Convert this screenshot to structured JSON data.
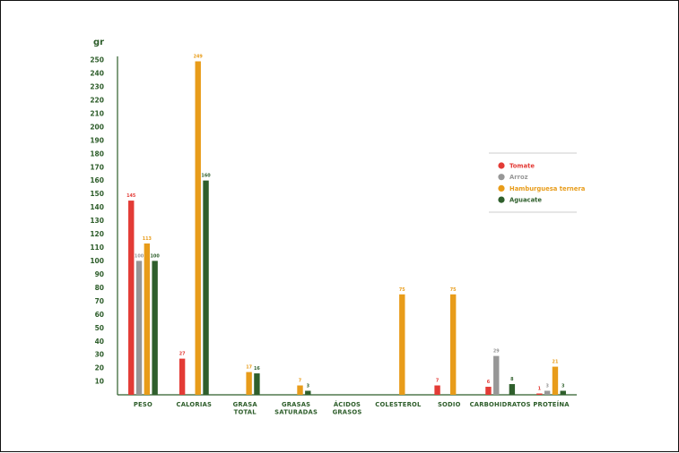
{
  "chart_data": {
    "type": "bar",
    "unit_label": "gr",
    "yticks": [
      10,
      20,
      30,
      40,
      50,
      60,
      70,
      80,
      90,
      100,
      110,
      120,
      130,
      140,
      150,
      160,
      170,
      180,
      190,
      200,
      210,
      220,
      230,
      240,
      250
    ],
    "ylim": [
      0,
      250
    ],
    "categories": [
      [
        "PESO"
      ],
      [
        "CALORIAS"
      ],
      [
        "GRASA",
        "TOTAL"
      ],
      [
        "GRASAS",
        "SATURADAS"
      ],
      [
        "ÁCIDOS",
        "GRASOS"
      ],
      [
        "COLESTEROL"
      ],
      [
        "SODIO"
      ],
      [
        "CARBOHIDRATOS"
      ],
      [
        "PROTEÍNA"
      ]
    ],
    "series": [
      {
        "name": "Tomate",
        "color": "#e33b36",
        "values": [
          145,
          27,
          null,
          null,
          null,
          null,
          7,
          6,
          1
        ]
      },
      {
        "name": "Arroz",
        "color": "#979797",
        "values": [
          100,
          null,
          null,
          null,
          null,
          null,
          null,
          29,
          3
        ]
      },
      {
        "name": "Hamburguesa ternera",
        "color": "#e89c1a",
        "values": [
          113,
          249,
          17,
          7,
          null,
          75,
          75,
          null,
          21
        ]
      },
      {
        "name": "Aguacate",
        "color": "#2f5f2c",
        "values": [
          100,
          160,
          16,
          3,
          null,
          null,
          null,
          8,
          3
        ]
      }
    ],
    "legend_position": "top-right",
    "grid": false
  }
}
